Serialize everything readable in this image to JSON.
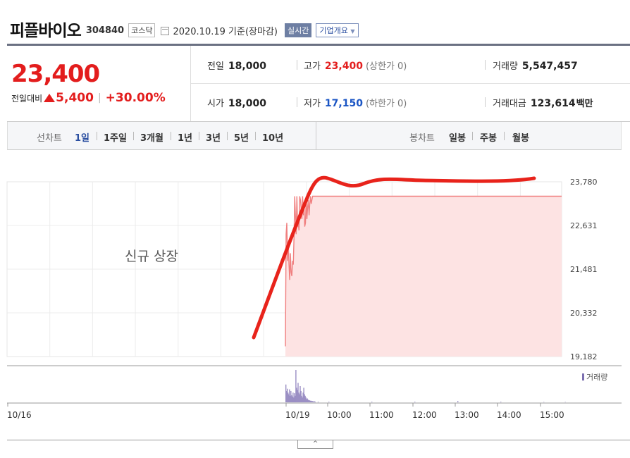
{
  "header": {
    "name": "피플바이오",
    "code": "304840",
    "market": "코스닥",
    "date": "2020.10.19",
    "basis": "기준(장마감)",
    "realtime_button": "실시간",
    "company_info_button": "기업개요"
  },
  "price": {
    "current": "23,400",
    "change_label": "전일대비",
    "change_value": "5,400",
    "change_percent": "+30.00%"
  },
  "quote": {
    "prev_close_label": "전일",
    "prev_close": "18,000",
    "high_label": "고가",
    "high": "23,400",
    "high_sub": "(상한가 0)",
    "volume_label": "거래량",
    "volume": "5,547,457",
    "open_label": "시가",
    "open": "18,000",
    "low_label": "저가",
    "low": "17,150",
    "low_sub": "(하한가 0)",
    "amount_label": "거래대금",
    "amount": "123,614",
    "amount_unit": "백만"
  },
  "toolbar": {
    "line_chart_label": "선차트",
    "line_periods": [
      "1일",
      "1주일",
      "3개월",
      "1년",
      "3년",
      "5년",
      "10년"
    ],
    "active_period": "1일",
    "candle_chart_label": "봉차트",
    "candle_periods": [
      "일봉",
      "주봉",
      "월봉"
    ]
  },
  "chart_data": {
    "type": "area",
    "yticks": [
      "23,780",
      "22,631",
      "21,481",
      "20,332",
      "19,182"
    ],
    "ylim": [
      19182,
      23780
    ],
    "xticks": [
      "10/16",
      "10/19",
      "10:00",
      "11:00",
      "12:00",
      "13:00",
      "14:00",
      "15:00"
    ],
    "annotation": "신규 상장",
    "volume_legend": "거래량",
    "colors": {
      "line": "#f08080",
      "fill": "#fde3e3",
      "volume": "#9b8fc4",
      "marker": "#e8231b"
    },
    "series": [
      {
        "x": [
          "09:00",
          "09:01",
          "09:02",
          "09:03",
          "09:04",
          "09:05",
          "09:06",
          "09:07",
          "09:08",
          "09:09",
          "09:10",
          "09:11",
          "09:12",
          "09:13",
          "09:14",
          "09:15",
          "09:16",
          "09:17",
          "09:18",
          "09:19",
          "09:20",
          "09:21",
          "09:22",
          "09:23",
          "09:24",
          "09:25",
          "09:26",
          "09:27",
          "09:28",
          "09:29",
          "09:30",
          "09:31",
          "09:32",
          "09:33",
          "09:34",
          "09:35",
          "09:36",
          "09:37",
          "09:38",
          "09:39",
          "09:40",
          "09:41",
          "09:45",
          "10:00",
          "11:00",
          "12:00",
          "13:00",
          "14:00",
          "15:00",
          "15:30"
        ],
        "values": [
          19450,
          22400,
          22700,
          21700,
          22200,
          21600,
          21200,
          21900,
          21400,
          21300,
          21700,
          21600,
          22300,
          23400,
          22900,
          22400,
          23400,
          22600,
          22700,
          22500,
          23400,
          23300,
          23100,
          22800,
          23400,
          22900,
          23200,
          22600,
          22700,
          23400,
          22800,
          23100,
          23300,
          22900,
          23200,
          23400,
          23200,
          23300,
          23400,
          23400,
          23400,
          23400,
          23400,
          23400,
          23400,
          23400,
          23400,
          23400,
          23400,
          23400
        ]
      }
    ],
    "volume": [
      0.55,
      0.35,
      0.42,
      0.3,
      0.25,
      0.4,
      0.2,
      0.35,
      0.22,
      0.18,
      0.3,
      0.15,
      0.28,
      0.2,
      1.0,
      0.45,
      0.38,
      0.6,
      0.3,
      0.25,
      0.5,
      0.35,
      0.2,
      0.15,
      0.3,
      0.45,
      0.25,
      0.2,
      0.15,
      0.1,
      0.12,
      0.08,
      0.07,
      0.06,
      0.05,
      0.05,
      0.04,
      0.04,
      0.03,
      0.03,
      0.03,
      0.02,
      0.02,
      0.02,
      0.02,
      0.02,
      0.04,
      0.02,
      0.01,
      0.01
    ]
  }
}
